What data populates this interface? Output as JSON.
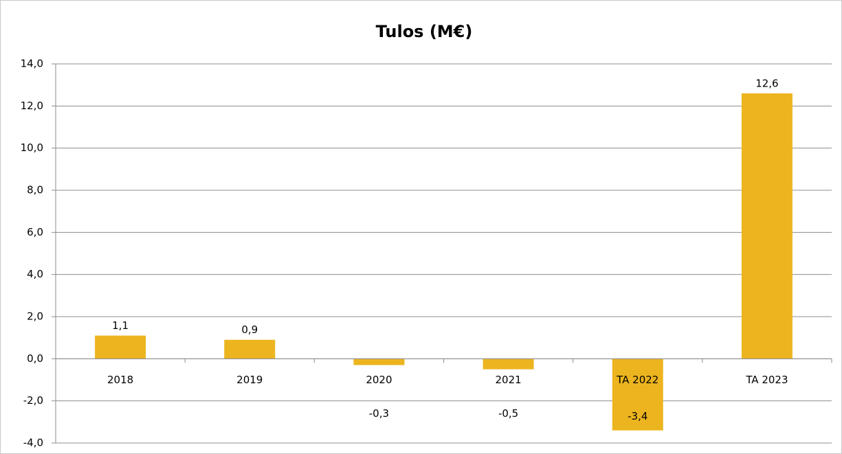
{
  "chart_data": {
    "type": "bar",
    "title": "Tulos (M€)",
    "categories": [
      "2018",
      "2019",
      "2020",
      "2021",
      "TA 2022",
      "TA 2023"
    ],
    "values": [
      1.1,
      0.9,
      -0.3,
      -0.5,
      -3.4,
      12.6
    ],
    "value_labels": [
      "1,1",
      "0,9",
      "-0,3",
      "-0,5",
      "-3,4",
      "12,6"
    ],
    "color": "#ecb51f",
    "ylim": [
      -4,
      14
    ],
    "yticks": [
      {
        "value": -4,
        "label": "-4,0"
      },
      {
        "value": -2,
        "label": "-2,0"
      },
      {
        "value": 0,
        "label": "0,0"
      },
      {
        "value": 2,
        "label": "2,0"
      },
      {
        "value": 4,
        "label": "4,0"
      },
      {
        "value": 6,
        "label": "6,0"
      },
      {
        "value": 8,
        "label": "8,0"
      },
      {
        "value": 10,
        "label": "10,0"
      },
      {
        "value": 12,
        "label": "12,0"
      },
      {
        "value": 14,
        "label": "14,0"
      }
    ],
    "grid": true
  }
}
